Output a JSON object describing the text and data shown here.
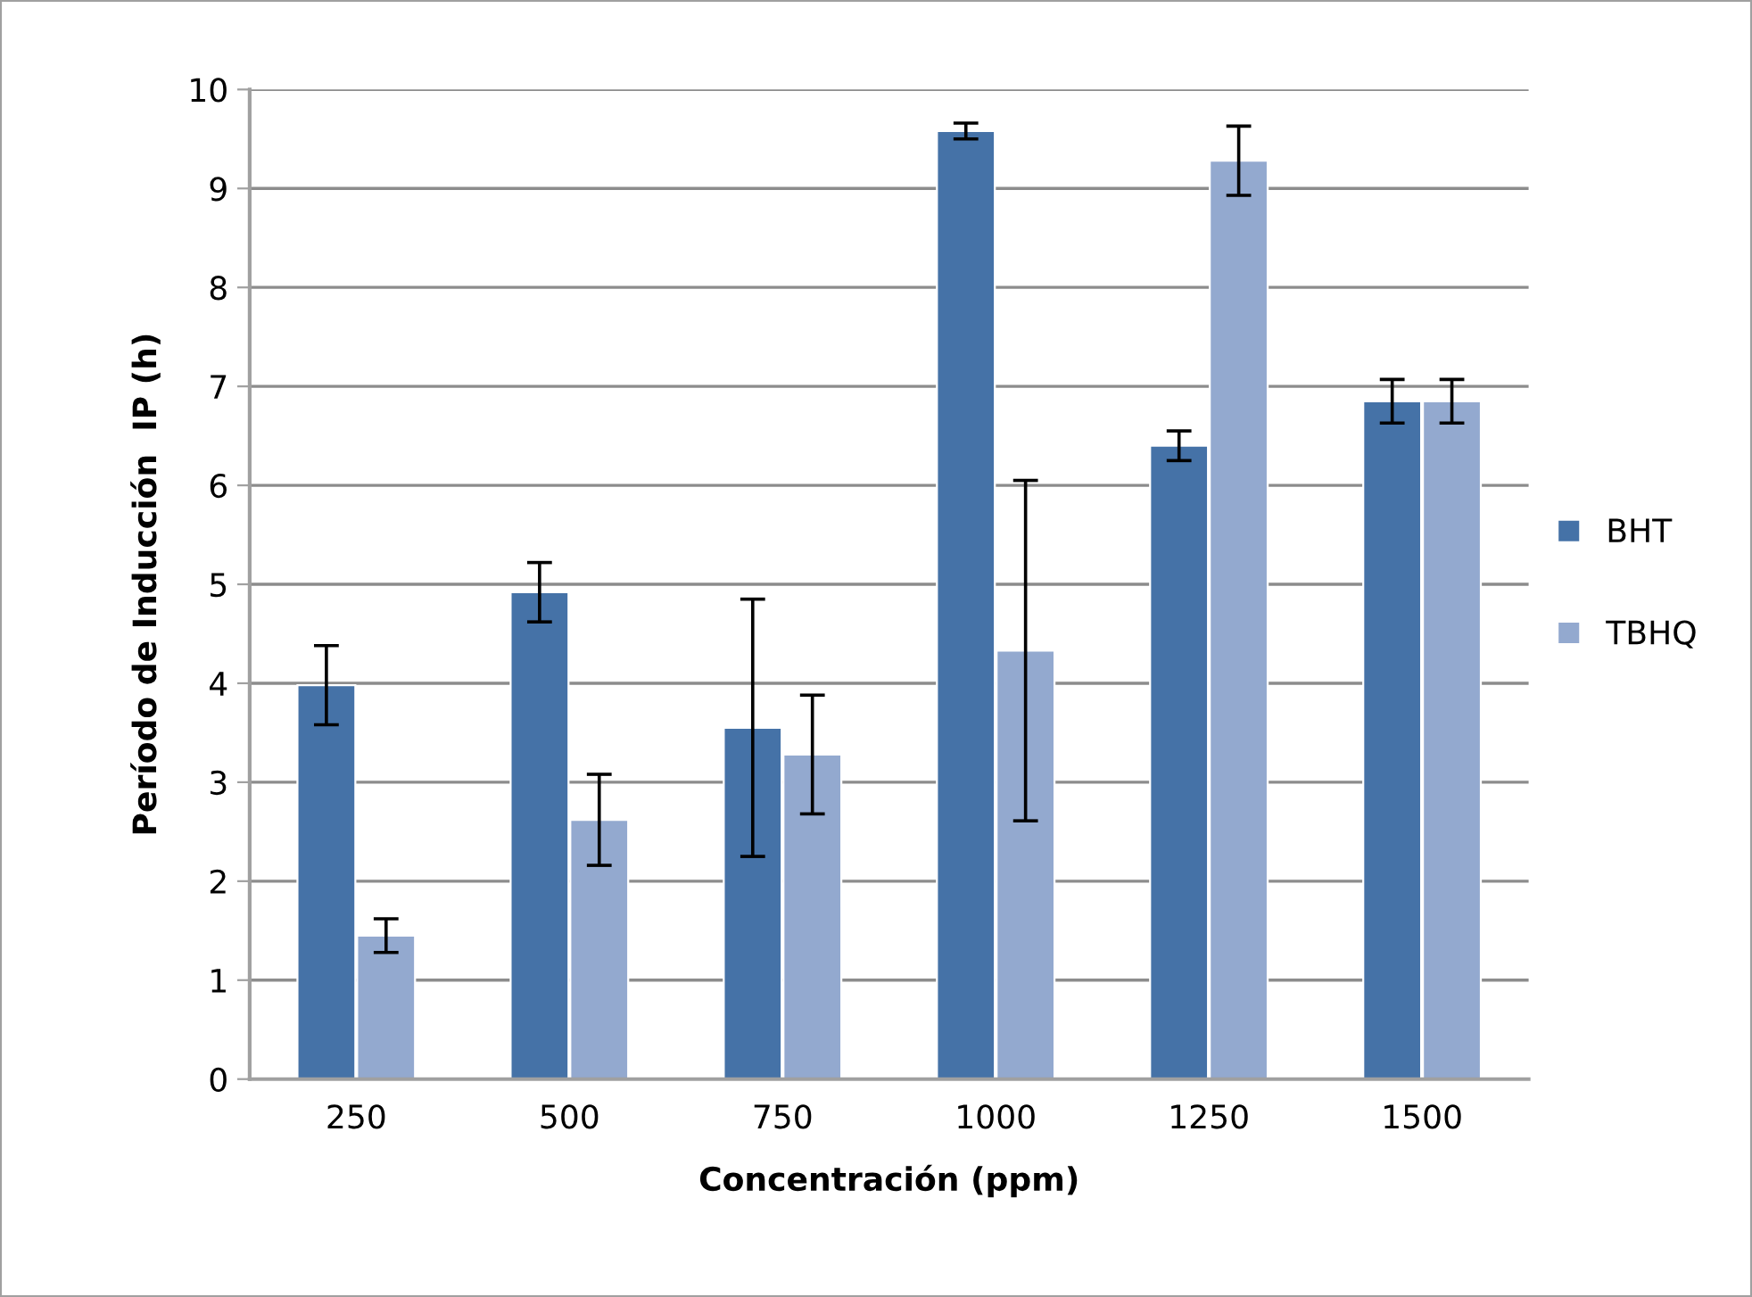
{
  "chart_data": {
    "type": "bar",
    "xlabel": "Concentración (ppm)",
    "ylabel": "Período de Inducción  IP (h)",
    "categories": [
      "250",
      "500",
      "750",
      "1000",
      "1250",
      "1500"
    ],
    "series": [
      {
        "name": "BHT",
        "color": "#4572a7",
        "values": [
          3.98,
          4.92,
          3.55,
          9.58,
          6.4,
          6.85
        ],
        "errors": [
          0.4,
          0.3,
          1.3,
          0.08,
          0.15,
          0.22
        ]
      },
      {
        "name": "TBHQ",
        "color": "#93a9cf",
        "values": [
          1.45,
          2.62,
          3.28,
          4.33,
          9.28,
          6.85
        ],
        "errors": [
          0.17,
          0.46,
          0.6,
          1.72,
          0.35,
          0.22
        ]
      }
    ],
    "ylim": [
      0,
      10
    ],
    "yticks": [
      0,
      1,
      2,
      3,
      4,
      5,
      6,
      7,
      8,
      9,
      10
    ],
    "grid": "y",
    "legend": "right"
  }
}
